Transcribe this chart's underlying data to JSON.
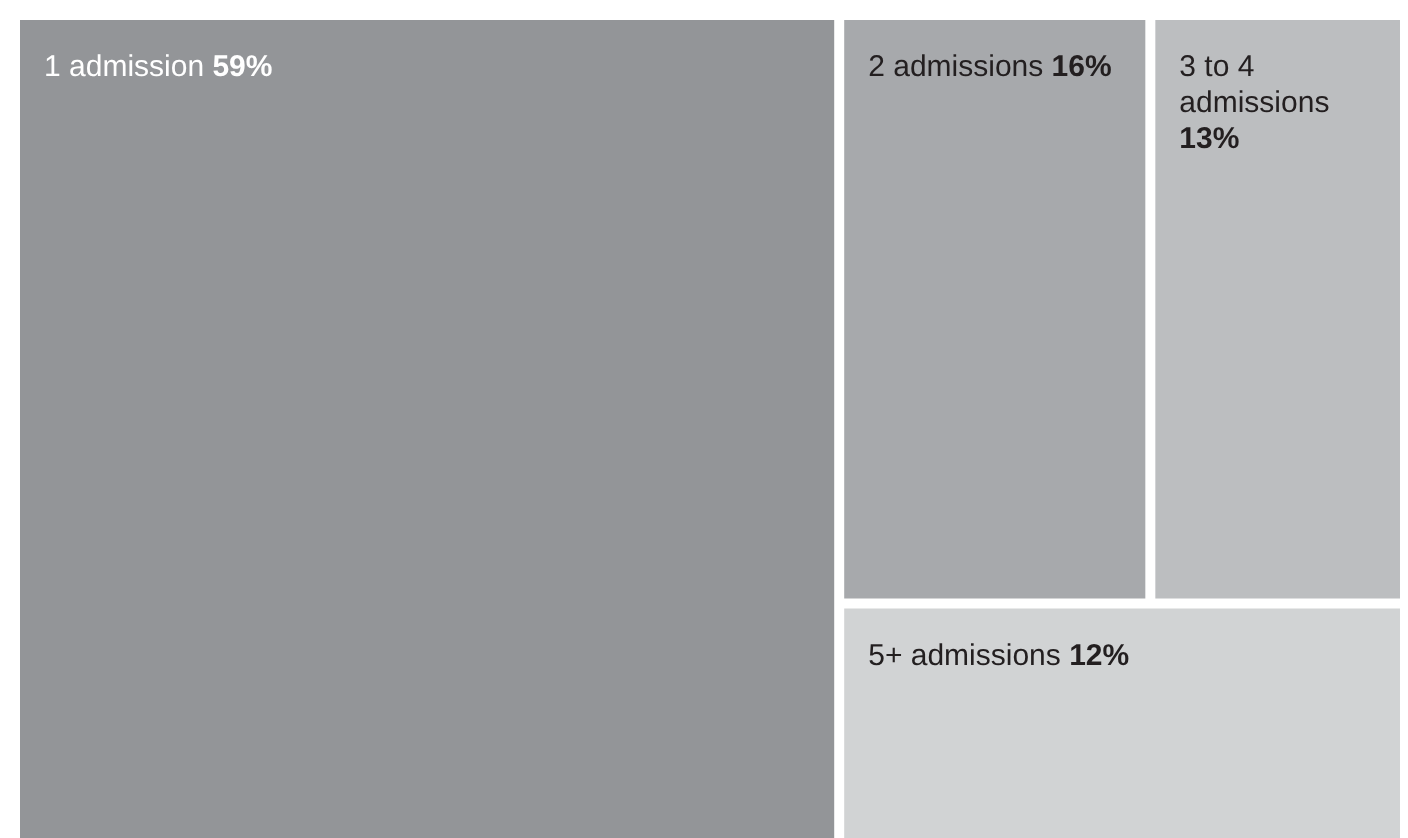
{
  "chart_data": {
    "type": "other",
    "categories": [
      "1 admission",
      "2 admissions",
      "3 to 4 admissions",
      "5+ admissions"
    ],
    "values": [
      59,
      16,
      13,
      12
    ],
    "value_labels": [
      "59%",
      "16%",
      "13%",
      "12%"
    ],
    "colors": [
      "#939598",
      "#a7a9ac",
      "#bcbec0",
      "#d1d3d4"
    ]
  }
}
